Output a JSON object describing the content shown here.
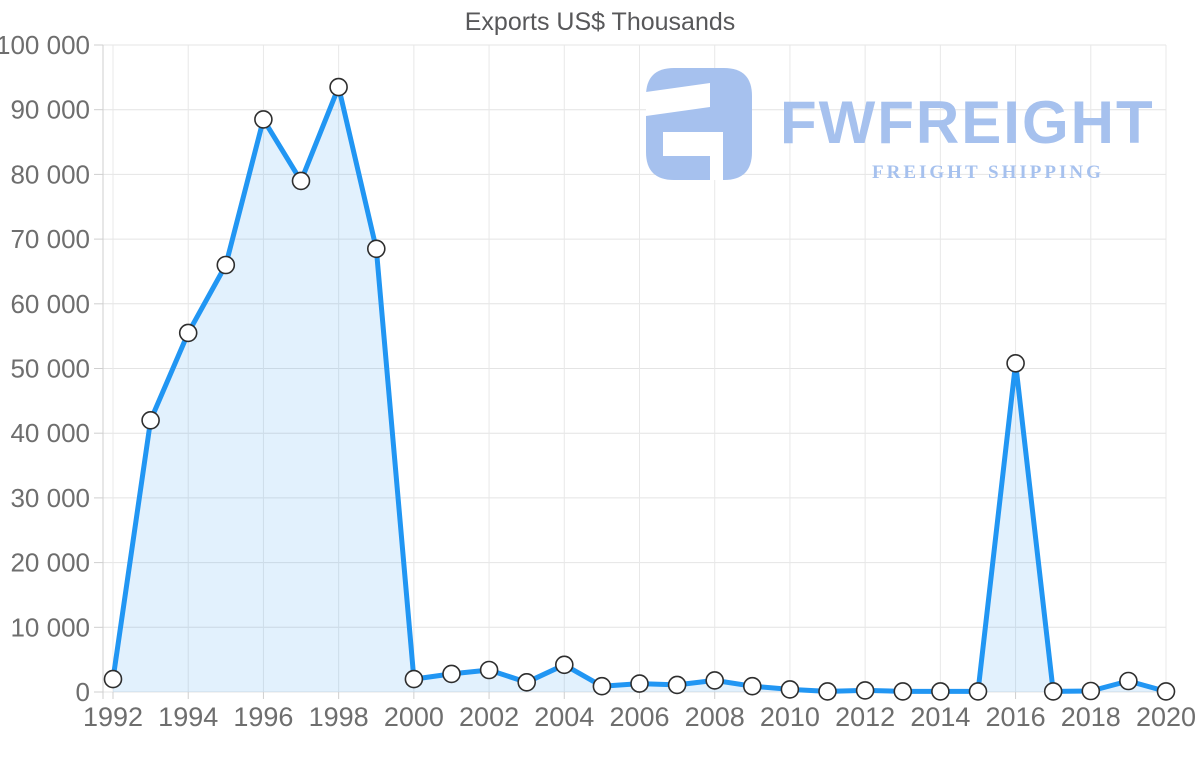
{
  "chart_data": {
    "type": "area",
    "title": "Exports US$ Thousands",
    "xlabel": "",
    "ylabel": "",
    "x": [
      1992,
      1993,
      1994,
      1995,
      1996,
      1997,
      1998,
      1999,
      2000,
      2001,
      2002,
      2003,
      2004,
      2005,
      2006,
      2007,
      2008,
      2009,
      2010,
      2011,
      2012,
      2013,
      2014,
      2015,
      2016,
      2017,
      2018,
      2019,
      2020
    ],
    "series": [
      {
        "name": "Exports US$ Thousands",
        "values": [
          2000,
          42000,
          55500,
          66000,
          88500,
          79000,
          93500,
          68500,
          2000,
          2800,
          3400,
          1500,
          4200,
          900,
          1300,
          1100,
          1800,
          900,
          400,
          100,
          250,
          100,
          100,
          100,
          50800,
          100,
          150,
          1700,
          100
        ]
      }
    ],
    "ylim": [
      0,
      100000
    ],
    "ytick_values": [
      0,
      10000,
      20000,
      30000,
      40000,
      50000,
      60000,
      70000,
      80000,
      90000,
      100000
    ],
    "ytick_labels": [
      "0",
      "10 000",
      "20 000",
      "30 000",
      "40 000",
      "50 000",
      "60 000",
      "70 000",
      "80 000",
      "90 000",
      "100 000"
    ],
    "xtick_values": [
      1992,
      1994,
      1996,
      1998,
      2000,
      2002,
      2004,
      2006,
      2008,
      2010,
      2012,
      2014,
      2016,
      2018,
      2020
    ],
    "xtick_labels": [
      "1992",
      "1994",
      "1996",
      "1998",
      "2000",
      "2002",
      "2004",
      "2006",
      "2008",
      "2010",
      "2012",
      "2014",
      "2016",
      "2018",
      "2020"
    ],
    "grid": true,
    "legend": false,
    "colors": {
      "line": "#2196f3",
      "fill": "rgba(33,150,243,0.13)",
      "marker_fill": "#ffffff",
      "marker_stroke": "#2e2e2e",
      "grid_h": "#e4e4e4",
      "grid_v": "#e8e8e8",
      "axis": "#cfcfcf",
      "label": "#6e6e6e",
      "title": "#58585a"
    }
  },
  "watermark": {
    "brand": "FWFREIGHT",
    "tagline": "FREIGHT SHIPPING",
    "color": "#a6c1ee"
  }
}
